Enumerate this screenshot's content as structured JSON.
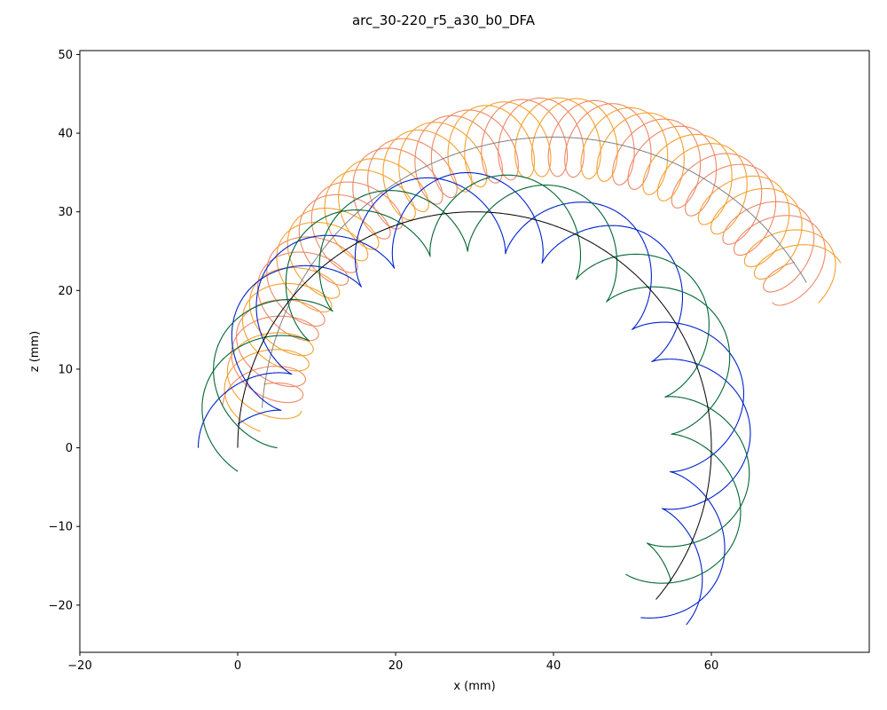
{
  "chart_data": {
    "type": "line",
    "title": "arc_30-220_r5_a30_b0_DFA",
    "xlabel": "x (mm)",
    "ylabel": "z (mm)",
    "xlim": [
      -20,
      80
    ],
    "ylim": [
      -26,
      50.5
    ],
    "xticks": [
      -20,
      0,
      20,
      40,
      60
    ],
    "yticks": [
      -20,
      -10,
      0,
      10,
      20,
      30,
      40,
      50
    ],
    "grid": false,
    "legend": "none",
    "groups": [
      {
        "id": "upper",
        "center": [
          40,
          2.5
        ],
        "start_angle_deg": 176,
        "end_angle_deg": 30,
        "radius": 37,
        "helix_radius": 5,
        "turns": 10.5,
        "strands": [
          {
            "color": "#ee8866",
            "phase_deg": 0
          },
          {
            "color": "#ee8866",
            "phase_deg": 90
          },
          {
            "color": "#f5a030",
            "phase_deg": 180
          },
          {
            "color": "#f5a030",
            "phase_deg": 270
          }
        ],
        "centerline_color": "#808080"
      },
      {
        "id": "lower",
        "center": [
          30,
          0
        ],
        "start_angle_deg": 180,
        "end_angle_deg": -40,
        "radius": 30,
        "helix_radius": 5,
        "turns": 5,
        "strands": [
          {
            "color": "#0022cc",
            "phase_deg": 0
          },
          {
            "color": "#0022cc",
            "phase_deg": 90
          },
          {
            "color": "#006633",
            "phase_deg": 180
          },
          {
            "color": "#006633",
            "phase_deg": 270
          }
        ],
        "centerline_color": "#000000"
      }
    ]
  }
}
